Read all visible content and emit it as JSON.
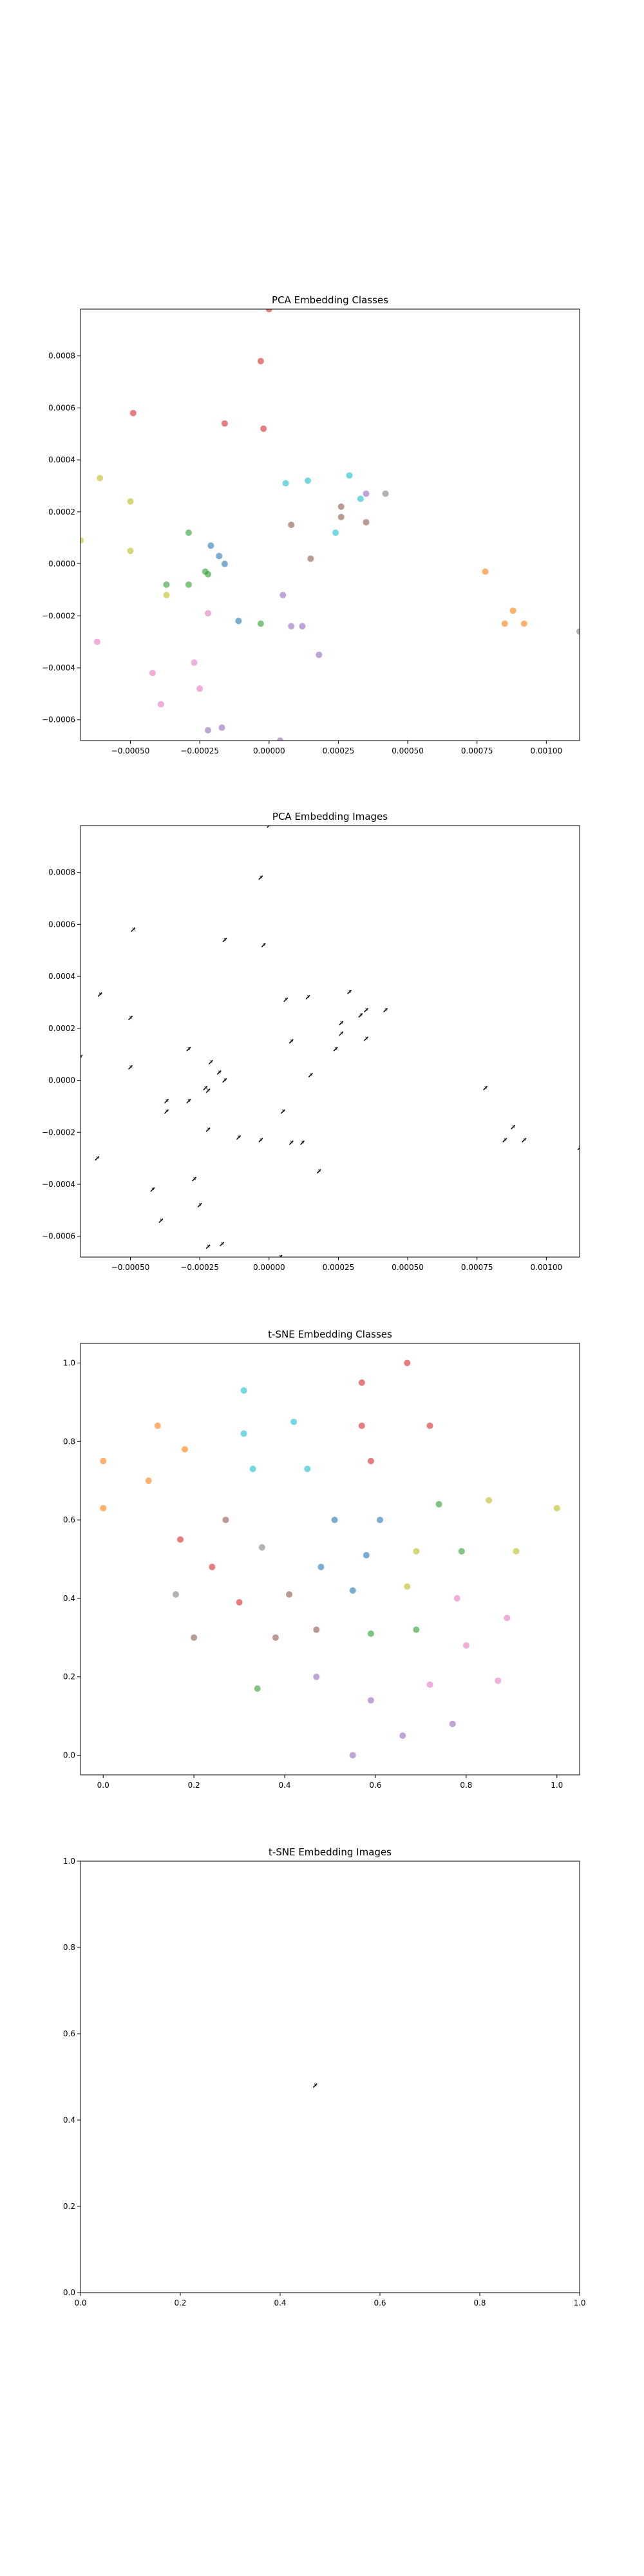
{
  "chart_data": [
    {
      "type": "scatter",
      "title": "PCA Embedding Classes",
      "xlabel": "",
      "ylabel": "",
      "xlim": [
        -0.00068,
        0.00112
      ],
      "ylim": [
        -0.00068,
        0.00098
      ],
      "xticks": [
        -0.0005,
        -0.00025,
        0.0,
        0.00025,
        0.0005,
        0.00075,
        0.001
      ],
      "xtick_labels": [
        "−0.00050",
        "−0.00025",
        "0.00000",
        "0.00025",
        "0.00050",
        "0.00075",
        "0.00100"
      ],
      "yticks": [
        -0.0006,
        -0.0004,
        -0.0002,
        0.0,
        0.0002,
        0.0004,
        0.0006,
        0.0008
      ],
      "ytick_labels": [
        "−0.0006",
        "−0.0004",
        "−0.0002",
        "0.0000",
        "0.0002",
        "0.0004",
        "0.0006",
        "0.0008"
      ],
      "grid": false,
      "marker": "dot",
      "points": [
        {
          "x": 0.0,
          "y": 0.00098,
          "color": "#d62728"
        },
        {
          "x": -3e-05,
          "y": 0.00078,
          "color": "#d62728"
        },
        {
          "x": -0.00049,
          "y": 0.00058,
          "color": "#d62728"
        },
        {
          "x": -0.00016,
          "y": 0.00054,
          "color": "#d62728"
        },
        {
          "x": -2e-05,
          "y": 0.00052,
          "color": "#d62728"
        },
        {
          "x": -0.00061,
          "y": 0.00033,
          "color": "#bcbd22"
        },
        {
          "x": -0.0005,
          "y": 0.00024,
          "color": "#bcbd22"
        },
        {
          "x": -0.00068,
          "y": 9e-05,
          "color": "#bcbd22"
        },
        {
          "x": -0.0005,
          "y": 5e-05,
          "color": "#bcbd22"
        },
        {
          "x": -0.00037,
          "y": -0.00012,
          "color": "#bcbd22"
        },
        {
          "x": -0.00029,
          "y": 0.00012,
          "color": "#2ca02c"
        },
        {
          "x": -0.00037,
          "y": -8e-05,
          "color": "#2ca02c"
        },
        {
          "x": -0.00029,
          "y": -8e-05,
          "color": "#2ca02c"
        },
        {
          "x": -0.00023,
          "y": -3e-05,
          "color": "#2ca02c"
        },
        {
          "x": -0.00022,
          "y": -4e-05,
          "color": "#2ca02c"
        },
        {
          "x": -3e-05,
          "y": -0.00023,
          "color": "#2ca02c"
        },
        {
          "x": -0.00021,
          "y": 7e-05,
          "color": "#1f77b4"
        },
        {
          "x": -0.00018,
          "y": 3e-05,
          "color": "#1f77b4"
        },
        {
          "x": -0.00016,
          "y": 0.0,
          "color": "#1f77b4"
        },
        {
          "x": -0.00011,
          "y": -0.00022,
          "color": "#1f77b4"
        },
        {
          "x": 6e-05,
          "y": 0.00031,
          "color": "#17becf"
        },
        {
          "x": 0.00014,
          "y": 0.00032,
          "color": "#17becf"
        },
        {
          "x": 0.00029,
          "y": 0.00034,
          "color": "#17becf"
        },
        {
          "x": 0.00033,
          "y": 0.00025,
          "color": "#17becf"
        },
        {
          "x": 0.00024,
          "y": 0.00012,
          "color": "#17becf"
        },
        {
          "x": 8e-05,
          "y": 0.00015,
          "color": "#8c564b"
        },
        {
          "x": 0.00015,
          "y": 2e-05,
          "color": "#8c564b"
        },
        {
          "x": 0.00026,
          "y": 0.00018,
          "color": "#8c564b"
        },
        {
          "x": 0.00026,
          "y": 0.00022,
          "color": "#8c564b"
        },
        {
          "x": 0.00035,
          "y": 0.00016,
          "color": "#8c564b"
        },
        {
          "x": 0.00035,
          "y": 0.00027,
          "color": "#9467bd"
        },
        {
          "x": 0.00042,
          "y": 0.00027,
          "color": "#7f7f7f"
        },
        {
          "x": 5e-05,
          "y": -0.00012,
          "color": "#9467bd"
        },
        {
          "x": 8e-05,
          "y": -0.00024,
          "color": "#9467bd"
        },
        {
          "x": 0.00012,
          "y": -0.00024,
          "color": "#9467bd"
        },
        {
          "x": 0.00018,
          "y": -0.00035,
          "color": "#9467bd"
        },
        {
          "x": 4e-05,
          "y": -0.00068,
          "color": "#9467bd"
        },
        {
          "x": -0.00022,
          "y": -0.00064,
          "color": "#9467bd"
        },
        {
          "x": -0.00017,
          "y": -0.00063,
          "color": "#9467bd"
        },
        {
          "x": -0.00022,
          "y": -0.00019,
          "color": "#e377c2"
        },
        {
          "x": -0.00027,
          "y": -0.00038,
          "color": "#e377c2"
        },
        {
          "x": -0.00025,
          "y": -0.00048,
          "color": "#e377c2"
        },
        {
          "x": -0.00042,
          "y": -0.00042,
          "color": "#e377c2"
        },
        {
          "x": -0.00039,
          "y": -0.00054,
          "color": "#e377c2"
        },
        {
          "x": -0.00062,
          "y": -0.0003,
          "color": "#e377c2"
        },
        {
          "x": 0.00078,
          "y": -3e-05,
          "color": "#ff7f0e"
        },
        {
          "x": 0.00088,
          "y": -0.00018,
          "color": "#ff7f0e"
        },
        {
          "x": 0.00085,
          "y": -0.00023,
          "color": "#ff7f0e"
        },
        {
          "x": 0.00092,
          "y": -0.00023,
          "color": "#ff7f0e"
        },
        {
          "x": 0.00112,
          "y": -0.00026,
          "color": "#7f7f7f"
        }
      ]
    },
    {
      "type": "scatter",
      "title": "PCA Embedding Images",
      "xlabel": "",
      "ylabel": "",
      "xlim": [
        -0.00068,
        0.00112
      ],
      "ylim": [
        -0.00068,
        0.00098
      ],
      "xticks": [
        -0.0005,
        -0.00025,
        0.0,
        0.00025,
        0.0005,
        0.00075,
        0.001
      ],
      "xtick_labels": [
        "−0.00050",
        "−0.00025",
        "0.00000",
        "0.00025",
        "0.00050",
        "0.00075",
        "0.00100"
      ],
      "yticks": [
        -0.0006,
        -0.0004,
        -0.0002,
        0.0,
        0.0002,
        0.0004,
        0.0006,
        0.0008
      ],
      "ytick_labels": [
        "−0.0006",
        "−0.0004",
        "−0.0002",
        "0.0000",
        "0.0002",
        "0.0004",
        "0.0006",
        "0.0008"
      ],
      "grid": false,
      "marker": "image",
      "points": [
        {
          "x": 0.0,
          "y": 0.00098
        },
        {
          "x": -3e-05,
          "y": 0.00078
        },
        {
          "x": -0.00049,
          "y": 0.00058
        },
        {
          "x": -0.00016,
          "y": 0.00054
        },
        {
          "x": -2e-05,
          "y": 0.00052
        },
        {
          "x": -0.00061,
          "y": 0.00033
        },
        {
          "x": -0.0005,
          "y": 0.00024
        },
        {
          "x": -0.00068,
          "y": 9e-05
        },
        {
          "x": -0.0005,
          "y": 5e-05
        },
        {
          "x": -0.00037,
          "y": -0.00012
        },
        {
          "x": -0.00029,
          "y": 0.00012
        },
        {
          "x": -0.00037,
          "y": -8e-05
        },
        {
          "x": -0.00029,
          "y": -8e-05
        },
        {
          "x": -0.00023,
          "y": -3e-05
        },
        {
          "x": -0.00022,
          "y": -4e-05
        },
        {
          "x": -3e-05,
          "y": -0.00023
        },
        {
          "x": -0.00021,
          "y": 7e-05
        },
        {
          "x": -0.00018,
          "y": 3e-05
        },
        {
          "x": -0.00016,
          "y": 0.0
        },
        {
          "x": -0.00011,
          "y": -0.00022
        },
        {
          "x": 6e-05,
          "y": 0.00031
        },
        {
          "x": 0.00014,
          "y": 0.00032
        },
        {
          "x": 0.00029,
          "y": 0.00034
        },
        {
          "x": 0.00033,
          "y": 0.00025
        },
        {
          "x": 0.00024,
          "y": 0.00012
        },
        {
          "x": 8e-05,
          "y": 0.00015
        },
        {
          "x": 0.00015,
          "y": 2e-05
        },
        {
          "x": 0.00026,
          "y": 0.00018
        },
        {
          "x": 0.00026,
          "y": 0.00022
        },
        {
          "x": 0.00035,
          "y": 0.00016
        },
        {
          "x": 0.00035,
          "y": 0.00027
        },
        {
          "x": 0.00042,
          "y": 0.00027
        },
        {
          "x": 5e-05,
          "y": -0.00012
        },
        {
          "x": 8e-05,
          "y": -0.00024
        },
        {
          "x": 0.00012,
          "y": -0.00024
        },
        {
          "x": 0.00018,
          "y": -0.00035
        },
        {
          "x": 4e-05,
          "y": -0.00068
        },
        {
          "x": -0.00022,
          "y": -0.00064
        },
        {
          "x": -0.00017,
          "y": -0.00063
        },
        {
          "x": -0.00022,
          "y": -0.00019
        },
        {
          "x": -0.00027,
          "y": -0.00038
        },
        {
          "x": -0.00025,
          "y": -0.00048
        },
        {
          "x": -0.00042,
          "y": -0.00042
        },
        {
          "x": -0.00039,
          "y": -0.00054
        },
        {
          "x": -0.00062,
          "y": -0.0003
        },
        {
          "x": 0.00078,
          "y": -3e-05
        },
        {
          "x": 0.00088,
          "y": -0.00018
        },
        {
          "x": 0.00085,
          "y": -0.00023
        },
        {
          "x": 0.00092,
          "y": -0.00023
        },
        {
          "x": 0.00112,
          "y": -0.00026
        }
      ]
    },
    {
      "type": "scatter",
      "title": "t-SNE Embedding Classes",
      "xlabel": "",
      "ylabel": "",
      "xlim": [
        -0.05,
        1.05
      ],
      "ylim": [
        -0.05,
        1.05
      ],
      "xticks": [
        0.0,
        0.2,
        0.4,
        0.6,
        0.8,
        1.0
      ],
      "xtick_labels": [
        "0.0",
        "0.2",
        "0.4",
        "0.6",
        "0.8",
        "1.0"
      ],
      "yticks": [
        0.0,
        0.2,
        0.4,
        0.6,
        0.8,
        1.0
      ],
      "ytick_labels": [
        "0.0",
        "0.2",
        "0.4",
        "0.6",
        "0.8",
        "1.0"
      ],
      "grid": false,
      "marker": "dot",
      "points": [
        {
          "x": 0.67,
          "y": 1.0,
          "color": "#d62728"
        },
        {
          "x": 0.57,
          "y": 0.95,
          "color": "#d62728"
        },
        {
          "x": 0.57,
          "y": 0.84,
          "color": "#d62728"
        },
        {
          "x": 0.72,
          "y": 0.84,
          "color": "#d62728"
        },
        {
          "x": 0.59,
          "y": 0.75,
          "color": "#d62728"
        },
        {
          "x": 0.17,
          "y": 0.55,
          "color": "#d62728"
        },
        {
          "x": 0.24,
          "y": 0.48,
          "color": "#d62728"
        },
        {
          "x": 0.3,
          "y": 0.39,
          "color": "#d62728"
        },
        {
          "x": 0.31,
          "y": 0.93,
          "color": "#17becf"
        },
        {
          "x": 0.42,
          "y": 0.85,
          "color": "#17becf"
        },
        {
          "x": 0.31,
          "y": 0.82,
          "color": "#17becf"
        },
        {
          "x": 0.45,
          "y": 0.73,
          "color": "#17becf"
        },
        {
          "x": 0.33,
          "y": 0.73,
          "color": "#17becf"
        },
        {
          "x": 0.12,
          "y": 0.84,
          "color": "#ff7f0e"
        },
        {
          "x": 0.0,
          "y": 0.75,
          "color": "#ff7f0e"
        },
        {
          "x": 0.18,
          "y": 0.78,
          "color": "#ff7f0e"
        },
        {
          "x": 0.1,
          "y": 0.7,
          "color": "#ff7f0e"
        },
        {
          "x": 0.0,
          "y": 0.63,
          "color": "#ff7f0e"
        },
        {
          "x": 0.51,
          "y": 0.6,
          "color": "#1f77b4"
        },
        {
          "x": 0.61,
          "y": 0.6,
          "color": "#1f77b4"
        },
        {
          "x": 0.48,
          "y": 0.48,
          "color": "#1f77b4"
        },
        {
          "x": 0.58,
          "y": 0.51,
          "color": "#1f77b4"
        },
        {
          "x": 0.55,
          "y": 0.42,
          "color": "#1f77b4"
        },
        {
          "x": 0.74,
          "y": 0.64,
          "color": "#2ca02c"
        },
        {
          "x": 0.79,
          "y": 0.52,
          "color": "#2ca02c"
        },
        {
          "x": 0.59,
          "y": 0.31,
          "color": "#2ca02c"
        },
        {
          "x": 0.69,
          "y": 0.32,
          "color": "#2ca02c"
        },
        {
          "x": 0.34,
          "y": 0.17,
          "color": "#2ca02c"
        },
        {
          "x": 0.85,
          "y": 0.65,
          "color": "#bcbd22"
        },
        {
          "x": 1.0,
          "y": 0.63,
          "color": "#bcbd22"
        },
        {
          "x": 0.69,
          "y": 0.52,
          "color": "#bcbd22"
        },
        {
          "x": 0.91,
          "y": 0.52,
          "color": "#bcbd22"
        },
        {
          "x": 0.67,
          "y": 0.43,
          "color": "#bcbd22"
        },
        {
          "x": 0.27,
          "y": 0.6,
          "color": "#8c564b"
        },
        {
          "x": 0.35,
          "y": 0.53,
          "color": "#7f7f7f"
        },
        {
          "x": 0.16,
          "y": 0.41,
          "color": "#7f7f7f"
        },
        {
          "x": 0.41,
          "y": 0.41,
          "color": "#8c564b"
        },
        {
          "x": 0.2,
          "y": 0.3,
          "color": "#8c564b"
        },
        {
          "x": 0.38,
          "y": 0.3,
          "color": "#8c564b"
        },
        {
          "x": 0.47,
          "y": 0.32,
          "color": "#8c564b"
        },
        {
          "x": 0.78,
          "y": 0.4,
          "color": "#e377c2"
        },
        {
          "x": 0.89,
          "y": 0.35,
          "color": "#e377c2"
        },
        {
          "x": 0.8,
          "y": 0.28,
          "color": "#e377c2"
        },
        {
          "x": 0.87,
          "y": 0.19,
          "color": "#e377c2"
        },
        {
          "x": 0.72,
          "y": 0.18,
          "color": "#e377c2"
        },
        {
          "x": 0.47,
          "y": 0.2,
          "color": "#9467bd"
        },
        {
          "x": 0.59,
          "y": 0.14,
          "color": "#9467bd"
        },
        {
          "x": 0.77,
          "y": 0.08,
          "color": "#9467bd"
        },
        {
          "x": 0.66,
          "y": 0.05,
          "color": "#9467bd"
        },
        {
          "x": 0.55,
          "y": 0.0,
          "color": "#9467bd"
        }
      ]
    },
    {
      "type": "scatter",
      "title": "t-SNE Embedding Images",
      "xlabel": "",
      "ylabel": "",
      "xlim": [
        0.0,
        1.0
      ],
      "ylim": [
        0.0,
        1.0
      ],
      "xticks": [
        0.0,
        0.2,
        0.4,
        0.6,
        0.8,
        1.0
      ],
      "xtick_labels": [
        "0.0",
        "0.2",
        "0.4",
        "0.6",
        "0.8",
        "1.0"
      ],
      "yticks": [
        0.0,
        0.2,
        0.4,
        0.6,
        0.8,
        1.0
      ],
      "ytick_labels": [
        "0.0",
        "0.2",
        "0.4",
        "0.6",
        "0.8",
        "1.0"
      ],
      "grid": false,
      "marker": "image",
      "points": [
        {
          "x": 0.47,
          "y": 0.48
        }
      ]
    }
  ]
}
